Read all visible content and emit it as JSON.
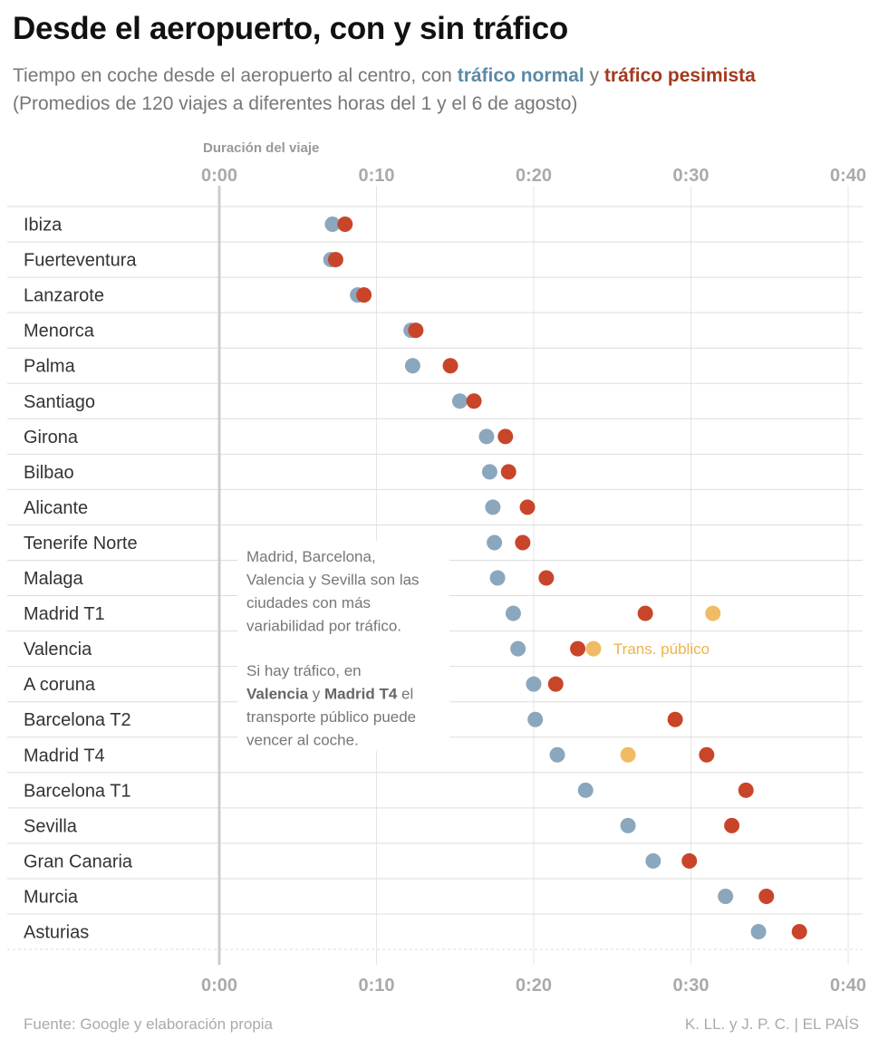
{
  "header": {
    "title": "Desde el aeropuerto, con y sin tráfico",
    "subtitle_pre": "Tiempo en coche desde el aeropuerto al centro, con ",
    "subtitle_normal": "tráfico normal",
    "subtitle_mid": " y ",
    "subtitle_pess": "tráfico pesimista",
    "subtitle_line2": "(Promedios de 120 viajes a diferentes horas del 1 y el 6 de agosto)"
  },
  "footer": {
    "source": "Fuente: Google y elaboración propia",
    "credit": "K. LL. y J. P. C.  |  EL PAÍS"
  },
  "colors": {
    "normal": "#8ba7bd",
    "pesimista": "#c9452a",
    "publico": "#f0bb64",
    "grid": "#e6e6e6",
    "axis": "#cccccc"
  },
  "chart_data": {
    "type": "scatter",
    "xlabel": "Duración del viaje",
    "xlim_minutes": [
      0,
      40
    ],
    "xticks": [
      "0:00",
      "0:10",
      "0:20",
      "0:30",
      "0:40"
    ],
    "legend": "in subtitle",
    "categories": [
      "Ibiza",
      "Fuerteventura",
      "Lanzarote",
      "Menorca",
      "Palma",
      "Santiago",
      "Girona",
      "Bilbao",
      "Alicante",
      "Tenerife Norte",
      "Malaga",
      "Madrid T1",
      "Valencia",
      "A coruna",
      "Barcelona T2",
      "Madrid T4",
      "Barcelona T1",
      "Sevilla",
      "Gran Canaria",
      "Murcia",
      "Asturias"
    ],
    "series": [
      {
        "name": "tráfico normal",
        "values": [
          7.2,
          7.1,
          8.8,
          12.2,
          12.3,
          15.3,
          17.0,
          17.2,
          17.4,
          17.5,
          17.7,
          18.7,
          19.0,
          20.0,
          20.1,
          21.5,
          23.3,
          26.0,
          27.6,
          32.2,
          34.3
        ]
      },
      {
        "name": "tráfico pesimista",
        "values": [
          8.0,
          7.4,
          9.2,
          12.5,
          14.7,
          16.2,
          18.2,
          18.4,
          19.6,
          19.3,
          20.8,
          27.1,
          22.8,
          21.4,
          29.0,
          31.0,
          33.5,
          32.6,
          29.9,
          34.8,
          36.9
        ]
      },
      {
        "name": "Trans. público",
        "points": [
          {
            "category": "Madrid T1",
            "value": 31.4
          },
          {
            "category": "Valencia",
            "value": 23.8
          },
          {
            "category": "Madrid T4",
            "value": 26.0
          }
        ]
      }
    ],
    "annotations": {
      "box_para1": [
        "Madrid, Barcelona,",
        "Valencia y Sevilla son las",
        "ciudades con más",
        "variabilidad por tráfico."
      ],
      "box_para2_line1": "Si hay tráfico, en",
      "box_para2_bold1": "Valencia",
      "box_para2_mid": " y ",
      "box_para2_bold2": "Madrid T4",
      "box_para2_end": " el",
      "box_para2_rest": [
        "transporte público puede",
        "vencer al coche."
      ],
      "transit_label": "Trans. público"
    }
  }
}
